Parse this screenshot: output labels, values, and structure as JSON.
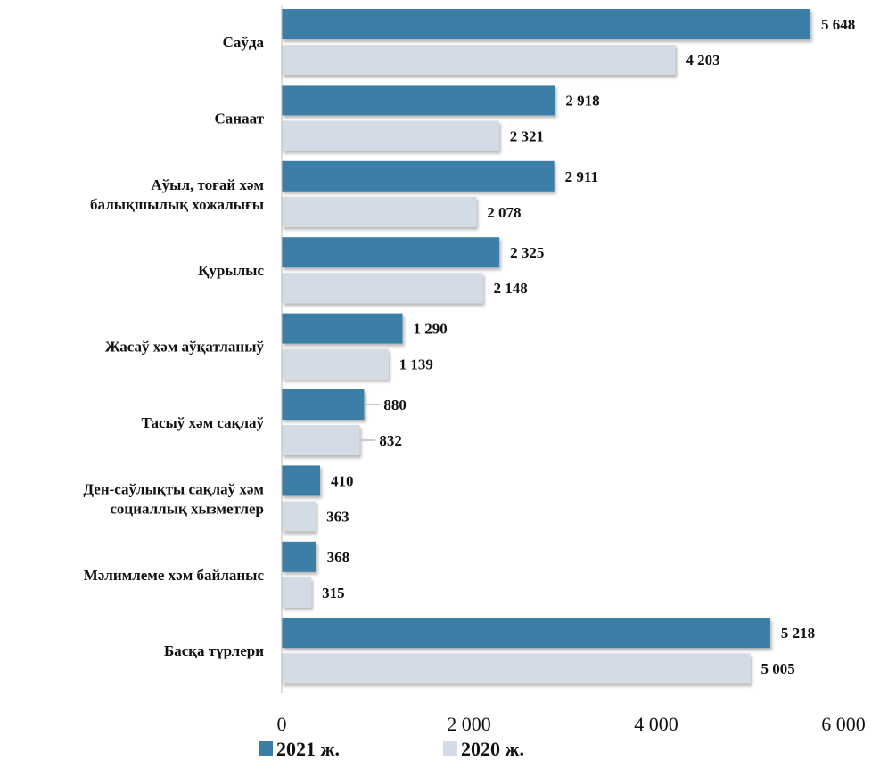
{
  "chart_data": {
    "type": "bar",
    "orientation": "horizontal",
    "categories": [
      [
        "Саўда"
      ],
      [
        "Санаат"
      ],
      [
        "Аўыл, тоғай хәм",
        "балықшылық хожалығы"
      ],
      [
        "Қурылыс"
      ],
      [
        "Жасаў хәм аўқатланыў"
      ],
      [
        "Тасыў хәм сақлаў"
      ],
      [
        "Ден-саўлықты сақлаў хәм",
        "социаллық хызметлер"
      ],
      [
        "Мәлимлеме хәм байланыс"
      ],
      [
        "Басқа түрлери"
      ]
    ],
    "series": [
      {
        "name": "2021 ж.",
        "color": "#3a7ea8",
        "values": [
          5648,
          2918,
          2911,
          2325,
          1290,
          880,
          410,
          368,
          5218
        ],
        "labels": [
          "5 648",
          "2 918",
          "2 911",
          "2 325",
          "1 290",
          "880",
          "410",
          "368",
          "5 218"
        ]
      },
      {
        "name": "2020 ж.",
        "color": "#d3dbe6",
        "values": [
          4203,
          2321,
          2078,
          2148,
          1139,
          832,
          363,
          315,
          5005
        ],
        "labels": [
          "4 203",
          "2 321",
          "2 078",
          "2 148",
          "1 139",
          "832",
          "363",
          "315",
          "5 005"
        ]
      }
    ],
    "xlim": [
      0,
      6000
    ],
    "xticks": [
      0,
      2000,
      4000,
      6000
    ],
    "xtick_labels": [
      "0",
      "2 000",
      "4 000",
      "6 000"
    ],
    "legend": {
      "position": "bottom"
    },
    "grid": false
  }
}
